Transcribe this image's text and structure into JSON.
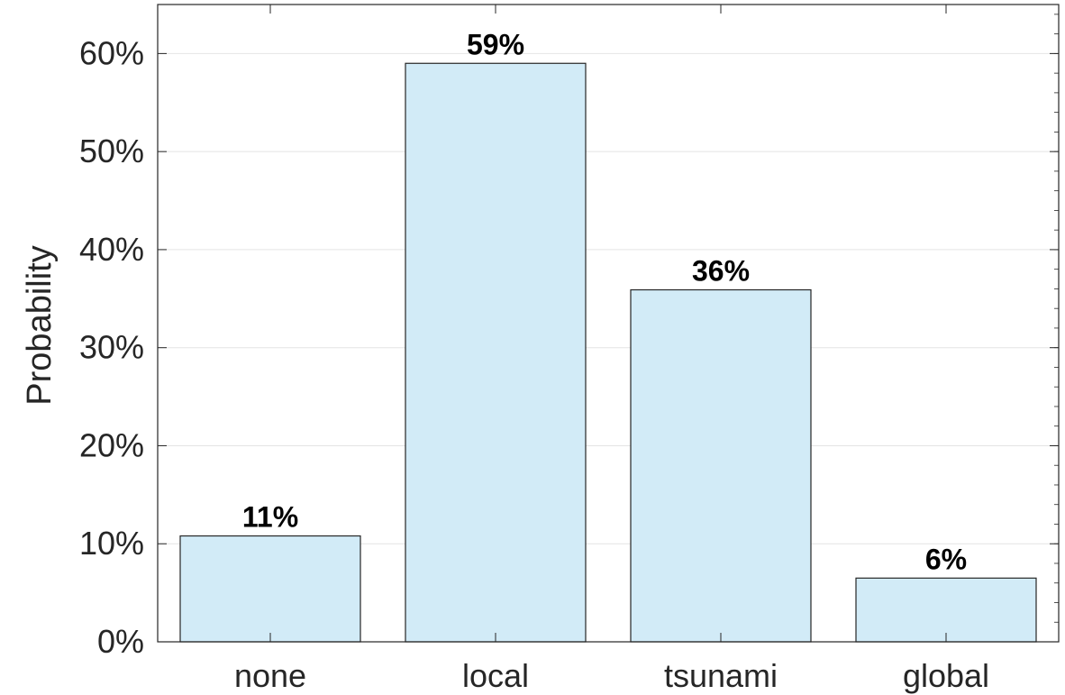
{
  "chart_data": {
    "type": "bar",
    "ylabel": "Probability",
    "categories": [
      "none",
      "local",
      "tsunami",
      "global"
    ],
    "values": [
      10.8,
      59.0,
      35.9,
      6.5
    ],
    "data_labels": [
      "11%",
      "59%",
      "36%",
      "6%"
    ],
    "yticks": [
      {
        "value": 0,
        "label": "0%"
      },
      {
        "value": 10,
        "label": "10%"
      },
      {
        "value": 20,
        "label": "20%"
      },
      {
        "value": 30,
        "label": "30%"
      },
      {
        "value": 40,
        "label": "40%"
      },
      {
        "value": 50,
        "label": "50%"
      },
      {
        "value": 60,
        "label": "60%"
      }
    ],
    "ylim": [
      0,
      65
    ],
    "grid": true,
    "bar_color": "#d2ebf7",
    "bar_edge_color": "#262626"
  }
}
